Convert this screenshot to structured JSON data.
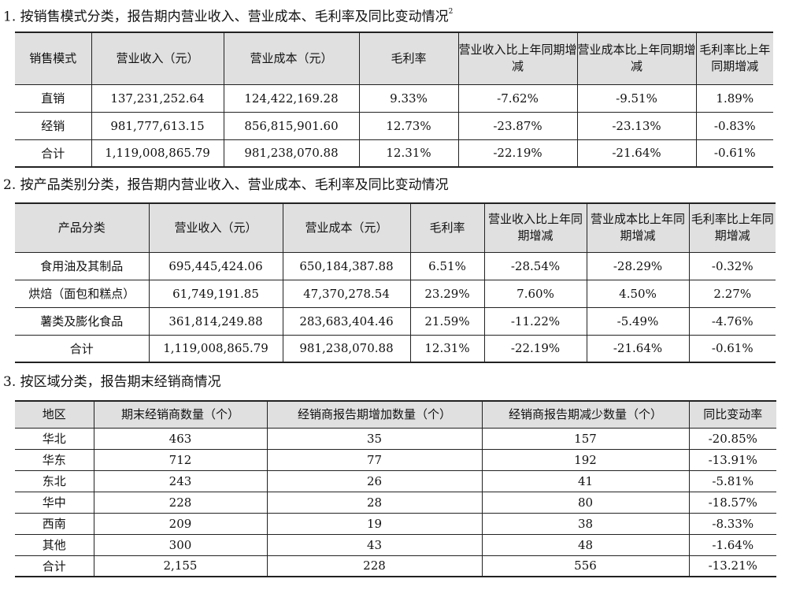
{
  "section1": {
    "heading": "1. 按销售模式分类，报告期内营业收入、营业成本、毛利率及同比变动情况",
    "footnote_mark": "2",
    "headers": [
      "销售模式",
      "营业收入（元）",
      "营业成本（元）",
      "毛利率",
      "营业收入比上年同期增减",
      "营业成本比上年同期增减",
      "毛利率比上年同期增减"
    ],
    "rows": [
      [
        "直销",
        "137,231,252.64",
        "124,422,169.28",
        "9.33%",
        "-7.62%",
        "-9.51%",
        "1.89%"
      ],
      [
        "经销",
        "981,777,613.15",
        "856,815,901.60",
        "12.73%",
        "-23.87%",
        "-23.13%",
        "-0.83%"
      ],
      [
        "合计",
        "1,119,008,865.79",
        "981,238,070.88",
        "12.31%",
        "-22.19%",
        "-21.64%",
        "-0.61%"
      ]
    ]
  },
  "section2": {
    "heading": "2. 按产品类别分类，报告期内营业收入、营业成本、毛利率及同比变动情况",
    "headers": [
      "产品分类",
      "营业收入（元）",
      "营业成本（元）",
      "毛利率",
      "营业收入比上年同期增减",
      "营业成本比上年同期增减",
      "毛利率比上年同期增减"
    ],
    "rows": [
      [
        "食用油及其制品",
        "695,445,424.06",
        "650,184,387.88",
        "6.51%",
        "-28.54%",
        "-28.29%",
        "-0.32%"
      ],
      [
        "烘焙（面包和糕点）",
        "61,749,191.85",
        "47,370,278.54",
        "23.29%",
        "7.60%",
        "4.50%",
        "2.27%"
      ],
      [
        "薯类及膨化食品",
        "361,814,249.88",
        "283,683,404.46",
        "21.59%",
        "-11.22%",
        "-5.49%",
        "-4.76%"
      ],
      [
        "合计",
        "1,119,008,865.79",
        "981,238,070.88",
        "12.31%",
        "-22.19%",
        "-21.64%",
        "-0.61%"
      ]
    ]
  },
  "section3": {
    "heading": "3. 按区域分类，报告期末经销商情况",
    "headers": [
      "地区",
      "期末经销商数量（个）",
      "经销商报告期增加数量（个）",
      "经销商报告期减少数量（个）",
      "同比变动率"
    ],
    "rows": [
      [
        "华北",
        "463",
        "35",
        "157",
        "-20.85%"
      ],
      [
        "华东",
        "712",
        "77",
        "192",
        "-13.91%"
      ],
      [
        "东北",
        "243",
        "26",
        "41",
        "-5.81%"
      ],
      [
        "华中",
        "228",
        "28",
        "80",
        "-18.57%"
      ],
      [
        "西南",
        "209",
        "19",
        "38",
        "-8.33%"
      ],
      [
        "其他",
        "300",
        "43",
        "48",
        "-1.64%"
      ],
      [
        "合计",
        "2,155",
        "228",
        "556",
        "-13.21%"
      ]
    ]
  }
}
